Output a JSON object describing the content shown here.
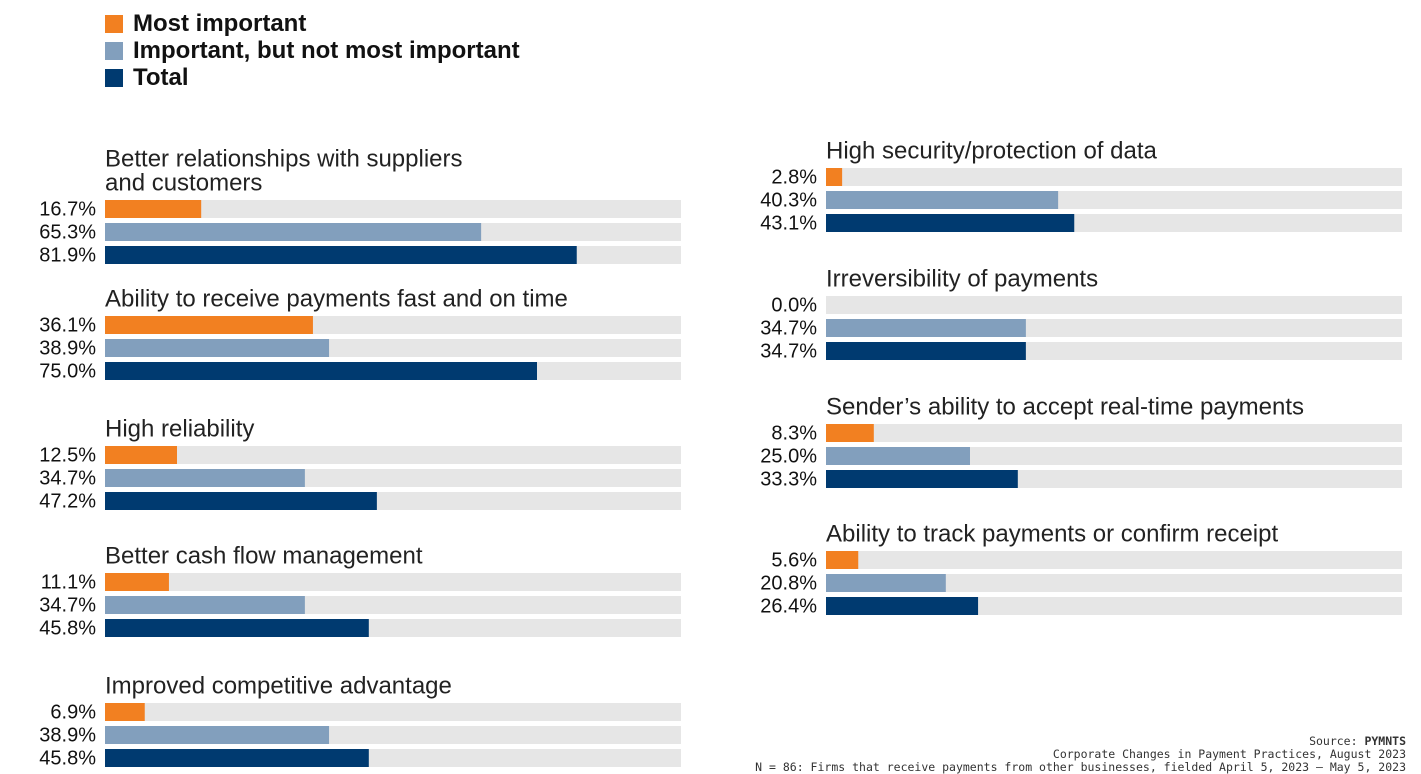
{
  "legend": [
    {
      "label": "Most important",
      "color": "#f28021"
    },
    {
      "label": "Important, but not most important",
      "color": "#829fbd"
    },
    {
      "label": "Total",
      "color": "#003a70"
    }
  ],
  "source": {
    "prefix": "Source: ",
    "brand": "PYMNTS",
    "report": "Corporate Changes in Payment Practices, August 2023",
    "note": "N = 86: Firms that receive payments from other businesses, fielded April 5, 2023 – May 5, 2023"
  },
  "chart_data": {
    "type": "bar",
    "orientation": "horizontal",
    "xlim": [
      0,
      100
    ],
    "series_names": [
      "Most important",
      "Important, but not most important",
      "Total"
    ],
    "colors": [
      "#f28021",
      "#829fbd",
      "#003a70"
    ],
    "groups": [
      {
        "title": [
          "Better relationships with suppliers",
          "and customers"
        ],
        "values": [
          16.7,
          65.3,
          81.9
        ],
        "labels": [
          "16.7%",
          "65.3%",
          "81.9%"
        ]
      },
      {
        "title": [
          "Ability to receive payments fast and on time"
        ],
        "values": [
          36.1,
          38.9,
          75.0
        ],
        "labels": [
          "36.1%",
          "38.9%",
          "75.0%"
        ]
      },
      {
        "title": [
          "High reliability"
        ],
        "values": [
          12.5,
          34.7,
          47.2
        ],
        "labels": [
          "12.5%",
          "34.7%",
          "47.2%"
        ]
      },
      {
        "title": [
          "Better cash flow management"
        ],
        "values": [
          11.1,
          34.7,
          45.8
        ],
        "labels": [
          "11.1%",
          "34.7%",
          "45.8%"
        ]
      },
      {
        "title": [
          "Improved competitive advantage"
        ],
        "values": [
          6.9,
          38.9,
          45.8
        ],
        "labels": [
          "6.9%",
          "38.9%",
          "45.8%"
        ]
      },
      {
        "title": [
          "High security/protection of data"
        ],
        "values": [
          2.8,
          40.3,
          43.1
        ],
        "labels": [
          "2.8%",
          "40.3%",
          "43.1%"
        ]
      },
      {
        "title": [
          "Irreversibility of payments"
        ],
        "values": [
          0.0,
          34.7,
          34.7
        ],
        "labels": [
          "0.0%",
          "34.7%",
          "34.7%"
        ]
      },
      {
        "title": [
          "Sender’s ability to accept real-time payments"
        ],
        "values": [
          8.3,
          25.0,
          33.3
        ],
        "labels": [
          "8.3%",
          "25.0%",
          "33.3%"
        ]
      },
      {
        "title": [
          "Ability to track payments or confirm receipt"
        ],
        "values": [
          5.6,
          20.8,
          26.4
        ],
        "labels": [
          "5.6%",
          "20.8%",
          "26.4%"
        ]
      }
    ]
  }
}
